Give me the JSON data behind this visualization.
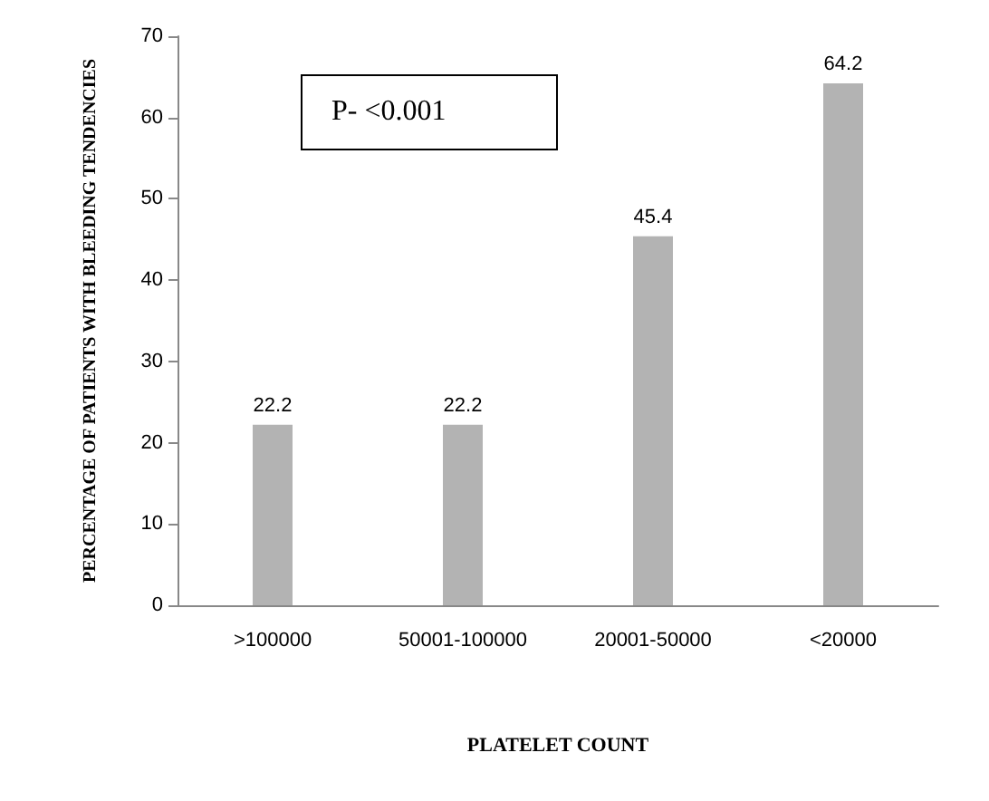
{
  "chart_data": {
    "type": "bar",
    "xlabel": "PLATELET COUNT",
    "ylabel": "PERCENTAGE OF PATIENTS WITH BLEEDING TENDENCIES",
    "categories": [
      ">100000",
      "50001-100000",
      "20001-50000",
      "<20000"
    ],
    "values": [
      22.2,
      22.2,
      45.4,
      64.2
    ],
    "color": "#b3b3b3",
    "ylim": [
      0,
      70
    ],
    "yticks": [
      0,
      10,
      20,
      30,
      40,
      50,
      60,
      70
    ],
    "grid": false,
    "data_labels": true,
    "annotations": [
      "P- <0.001"
    ]
  }
}
